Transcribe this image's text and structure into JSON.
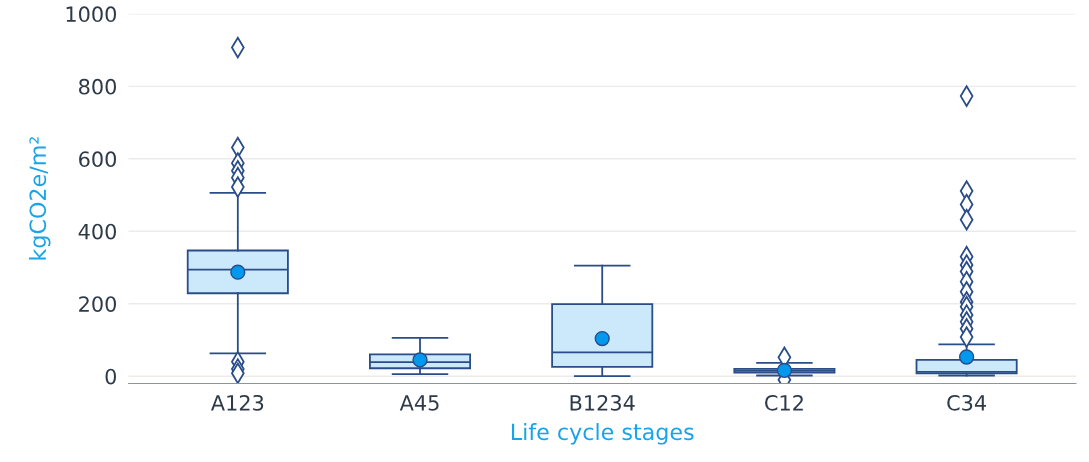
{
  "chart_data": {
    "type": "box",
    "xlabel": "Life cycle stages",
    "ylabel": "kgCO2e/m²",
    "categories": [
      "A123",
      "A45",
      "B1234",
      "C12",
      "C34"
    ],
    "ylim": [
      -20,
      1000
    ],
    "yticks": [
      0,
      200,
      400,
      600,
      800,
      1000
    ],
    "grid": "y",
    "color": "#cce9fb",
    "marker": "diamond",
    "boxes": [
      {
        "low": 63,
        "q1": 229,
        "median": 294,
        "q3": 347,
        "high": 506,
        "mean": 287,
        "outliers": [
          907,
          631,
          588,
          567,
          548,
          522,
          40,
          20,
          8
        ]
      },
      {
        "low": 6,
        "q1": 22,
        "median": 39,
        "q3": 60,
        "high": 106,
        "mean": 45
      },
      {
        "low": 0,
        "q1": 26,
        "median": 66,
        "q3": 199,
        "high": 305,
        "mean": 104
      },
      {
        "low": 2,
        "q1": 10,
        "median": 15,
        "q3": 20,
        "high": 37,
        "mean": 16,
        "outliers": [
          52,
          -10
        ]
      },
      {
        "low": 2,
        "q1": 8,
        "median": 12,
        "q3": 45,
        "high": 88,
        "mean": 53,
        "outliers": [
          773,
          511,
          474,
          432,
          330,
          307,
          289,
          261,
          233,
          205,
          192,
          169,
          150,
          131,
          108
        ]
      }
    ]
  }
}
